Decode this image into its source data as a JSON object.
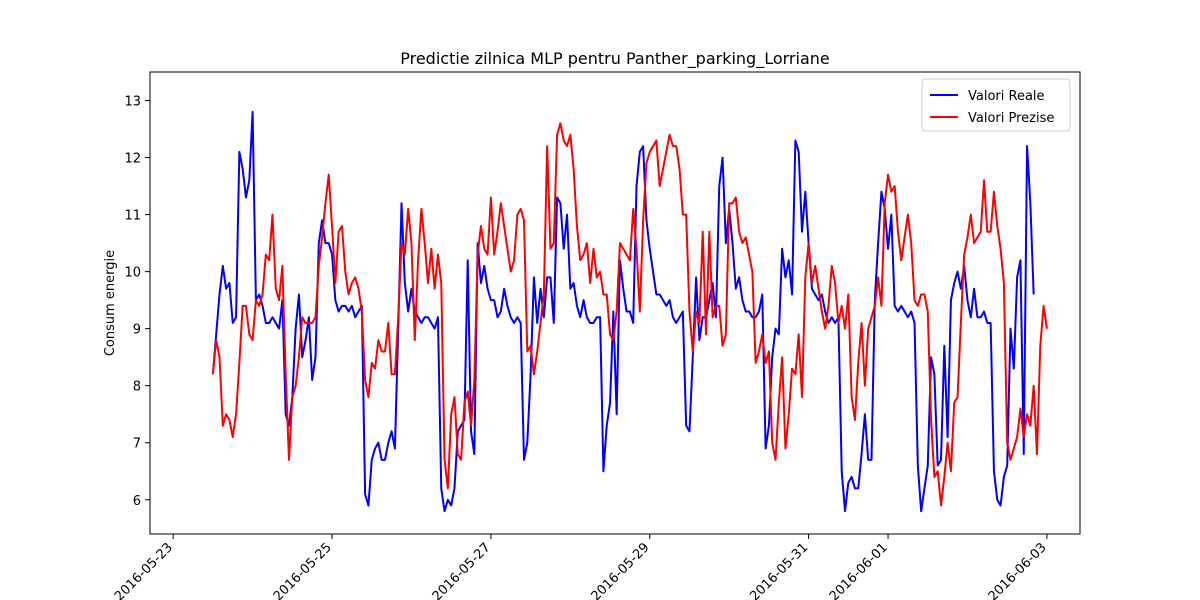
{
  "chart_data": {
    "type": "line",
    "title": "Predictie zilnica MLP pentru Panther_parking_Lorriane",
    "xlabel": "",
    "ylabel": "Consum energie",
    "x_ticks": [
      "2016-05-23",
      "2016-05-25",
      "2016-05-27",
      "2016-05-29",
      "2016-05-31",
      "2016-06-01",
      "2016-06-03"
    ],
    "y_ticks": [
      6,
      7,
      8,
      9,
      10,
      11,
      12,
      13
    ],
    "xlim": [
      "2016-05-22T17:00",
      "2016-06-03T10:00"
    ],
    "ylim": [
      5.4,
      13.5
    ],
    "grid": false,
    "legend_position": "top-right",
    "x_start": "2016-05-23T12:00",
    "x_step_hours": 1,
    "series": [
      {
        "name": "Valori Reale",
        "color": "#0000ff",
        "values": [
          8.2,
          8.9,
          9.6,
          10.1,
          9.7,
          9.8,
          9.1,
          9.2,
          12.1,
          11.8,
          11.3,
          11.6,
          12.8,
          9.5,
          9.6,
          9.4,
          9.1,
          9.1,
          9.2,
          9.1,
          9.0,
          9.5,
          7.5,
          7.3,
          7.8,
          9.0,
          9.6,
          8.5,
          8.8,
          9.2,
          8.1,
          8.5,
          10.5,
          10.9,
          10.5,
          10.5,
          10.3,
          9.5,
          9.3,
          9.4,
          9.4,
          9.3,
          9.4,
          9.2,
          9.3,
          9.4,
          6.1,
          5.9,
          6.7,
          6.9,
          7.0,
          6.7,
          6.7,
          7.0,
          7.2,
          6.9,
          9.0,
          11.2,
          9.8,
          9.3,
          9.7,
          9.3,
          9.2,
          9.1,
          9.2,
          9.2,
          9.1,
          9.0,
          9.2,
          6.2,
          5.8,
          6.0,
          5.9,
          6.2,
          7.2,
          7.3,
          7.4,
          10.2,
          7.2,
          6.8,
          10.5,
          9.8,
          10.1,
          9.7,
          9.5,
          9.5,
          9.2,
          9.3,
          9.7,
          9.4,
          9.2,
          9.1,
          9.2,
          9.1,
          6.7,
          7.0,
          8.2,
          9.9,
          9.1,
          9.7,
          9.2,
          9.9,
          9.9,
          9.1,
          11.3,
          11.2,
          10.4,
          11.0,
          9.7,
          9.8,
          9.4,
          9.2,
          9.5,
          9.2,
          9.1,
          9.1,
          9.2,
          9.2,
          6.5,
          7.3,
          7.7,
          9.3,
          7.5,
          10.2,
          9.7,
          9.3,
          9.3,
          9.1,
          11.5,
          12.1,
          12.2,
          10.9,
          10.4,
          10.0,
          9.6,
          9.6,
          9.5,
          9.4,
          9.5,
          9.2,
          9.1,
          9.2,
          9.3,
          7.3,
          7.2,
          8.5,
          9.9,
          8.8,
          9.2,
          9.2,
          9.5,
          9.8,
          9.2,
          11.5,
          12.0,
          10.5,
          11.1,
          10.5,
          9.7,
          9.9,
          9.5,
          9.3,
          9.3,
          9.2,
          9.2,
          9.3,
          9.6,
          6.9,
          7.3,
          8.5,
          9.0,
          8.9,
          10.4,
          9.9,
          10.2,
          9.6,
          12.3,
          12.1,
          10.7,
          11.4,
          10.5,
          9.7,
          9.6,
          9.5,
          9.6,
          9.3,
          9.1,
          9.2,
          9.1,
          9.2,
          6.5,
          5.8,
          6.3,
          6.4,
          6.2,
          6.2,
          6.8,
          7.5,
          6.7,
          6.7,
          9.5,
          10.5,
          11.4,
          11.1,
          10.4,
          11.0,
          9.4,
          9.3,
          9.4,
          9.3,
          9.2,
          9.3,
          9.1,
          6.6,
          5.8,
          6.2,
          6.6,
          8.5,
          8.2,
          6.6,
          6.7,
          8.7,
          7.1,
          9.5,
          9.8,
          10.0,
          9.7,
          10.1,
          9.5,
          9.2,
          9.7,
          9.2,
          9.2,
          9.3,
          9.1,
          9.1,
          6.5,
          6.0,
          5.9,
          6.4,
          6.6,
          9.0,
          8.3,
          9.9,
          10.2,
          6.8,
          12.2,
          11.2,
          9.6
        ]
      },
      {
        "name": "Valori Prezise",
        "color": "#ff0000",
        "values": [
          8.2,
          8.8,
          8.5,
          7.3,
          7.5,
          7.4,
          7.1,
          7.5,
          8.4,
          9.4,
          9.4,
          8.9,
          8.8,
          9.5,
          9.4,
          9.6,
          10.3,
          10.2,
          11.0,
          9.7,
          9.5,
          10.1,
          8.2,
          6.7,
          7.8,
          8.0,
          8.5,
          9.2,
          9.1,
          9.1,
          9.1,
          9.2,
          10.1,
          10.6,
          11.2,
          11.7,
          10.8,
          9.8,
          10.7,
          10.8,
          10.0,
          9.6,
          9.8,
          9.9,
          9.7,
          9.3,
          8.1,
          7.8,
          8.4,
          8.3,
          8.8,
          8.6,
          8.6,
          9.1,
          8.2,
          8.2,
          9.2,
          10.5,
          10.3,
          11.1,
          10.5,
          8.8,
          10.2,
          11.1,
          10.5,
          9.8,
          10.4,
          9.7,
          10.3,
          9.8,
          6.7,
          6.2,
          7.5,
          7.8,
          6.8,
          6.7,
          7.7,
          7.9,
          7.3,
          8.1,
          10.3,
          10.8,
          10.4,
          10.3,
          11.3,
          10.3,
          10.7,
          11.2,
          10.8,
          10.4,
          10.0,
          10.2,
          11.0,
          11.1,
          10.9,
          8.6,
          8.7,
          8.2,
          8.6,
          9.1,
          9.6,
          12.2,
          10.4,
          10.5,
          12.4,
          12.6,
          12.3,
          12.2,
          12.4,
          11.8,
          10.8,
          10.2,
          10.3,
          10.5,
          9.8,
          10.4,
          9.9,
          10.0,
          9.6,
          9.6,
          8.9,
          8.8,
          9.3,
          10.5,
          10.4,
          10.3,
          10.2,
          11.1,
          10.4,
          9.3,
          10.9,
          11.9,
          12.1,
          12.2,
          12.3,
          11.5,
          11.8,
          12.1,
          12.4,
          12.2,
          12.2,
          11.8,
          11.0,
          11.0,
          9.3,
          8.6,
          9.3,
          9.1,
          10.7,
          8.9,
          10.7,
          9.2,
          9.4,
          9.4,
          8.7,
          8.9,
          11.2,
          11.2,
          11.3,
          10.7,
          10.5,
          10.6,
          10.3,
          10.0,
          8.4,
          8.6,
          8.9,
          8.4,
          8.6,
          7.0,
          6.7,
          7.7,
          8.5,
          6.9,
          7.5,
          8.3,
          8.2,
          8.9,
          7.8,
          9.9,
          10.5,
          9.8,
          10.1,
          9.7,
          9.3,
          9.0,
          9.4,
          10.1,
          9.8,
          9.1,
          9.4,
          9.0,
          9.6,
          7.8,
          7.4,
          8.4,
          9.1,
          8.0,
          9.0,
          9.2,
          9.4,
          9.9,
          9.4,
          11.2,
          11.7,
          11.4,
          11.5,
          10.7,
          10.2,
          10.6,
          11.0,
          10.5,
          9.5,
          9.4,
          9.6,
          9.6,
          9.3,
          7.4,
          6.4,
          6.5,
          5.9,
          6.4,
          7.0,
          6.5,
          7.7,
          7.8,
          9.1,
          10.3,
          10.6,
          11.0,
          10.5,
          10.6,
          10.7,
          11.6,
          10.7,
          10.7,
          11.4,
          10.8,
          10.4,
          9.8,
          7.0,
          6.7,
          6.9,
          7.1,
          7.6,
          7.1,
          7.5,
          7.3,
          8.0,
          6.8,
          8.7,
          9.4,
          9.0
        ]
      }
    ]
  }
}
